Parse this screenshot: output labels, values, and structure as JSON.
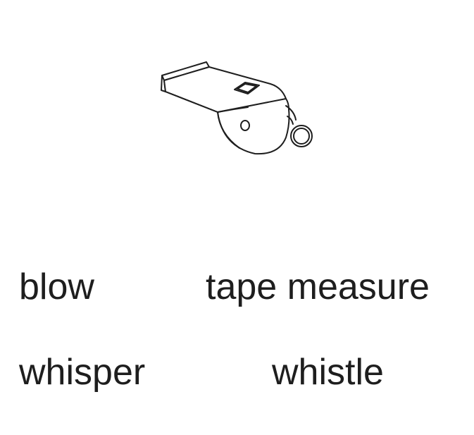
{
  "picture": {
    "icon": "whistle-icon",
    "line_color": "#1e1e1e"
  },
  "choices": [
    {
      "label": "blow"
    },
    {
      "label": "tape measure"
    },
    {
      "label": "whisper"
    },
    {
      "label": "whistle"
    }
  ]
}
